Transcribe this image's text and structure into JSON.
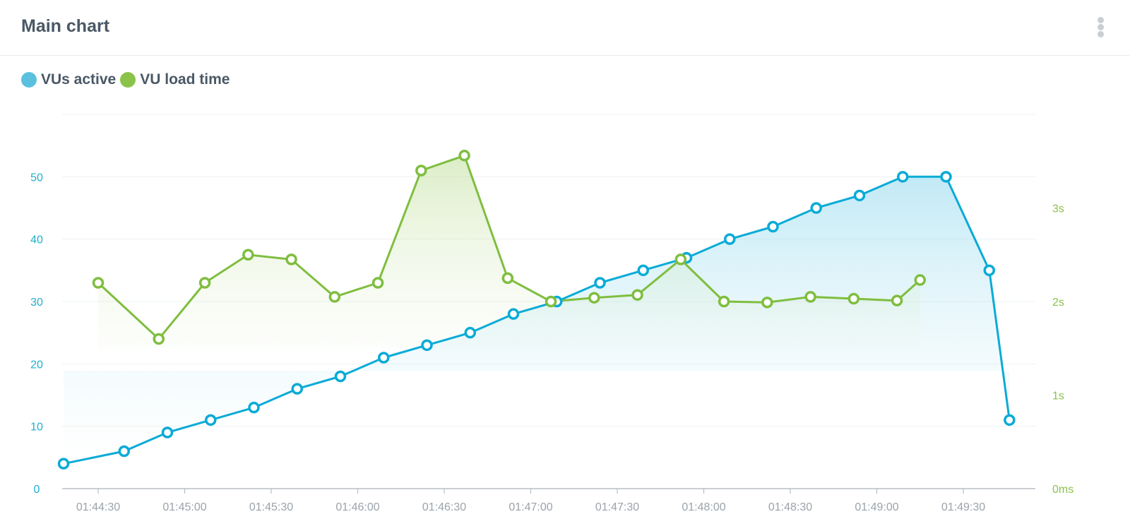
{
  "panel": {
    "title": "Main chart",
    "menu_icon": "more-vertical-icon"
  },
  "legend": [
    {
      "label": "VUs active",
      "color": "#5bc0de"
    },
    {
      "label": "VU load time",
      "color": "#8bc34a"
    }
  ],
  "colors": {
    "vus": "#0aabd6",
    "load": "#7fbe3f",
    "left_axis": "#1fb0cc",
    "right_axis": "#8bc34a",
    "x_axis": "#9aa3ab"
  },
  "chart_data": {
    "type": "line",
    "x": [
      "01:44:18",
      "01:44:39",
      "01:44:54",
      "01:45:09",
      "01:45:24",
      "01:45:39",
      "01:45:54",
      "01:46:09",
      "01:46:24",
      "01:46:39",
      "01:46:54",
      "01:47:09",
      "01:47:24",
      "01:47:39",
      "01:47:54",
      "01:48:09",
      "01:48:24",
      "01:48:39",
      "01:48:54",
      "01:49:09",
      "01:49:24",
      "01:49:39",
      "01:49:46"
    ],
    "x_ticks": [
      "01:44:30",
      "01:45:00",
      "01:45:30",
      "01:46:00",
      "01:46:30",
      "01:47:00",
      "01:47:30",
      "01:48:00",
      "01:48:30",
      "01:49:00",
      "01:49:30"
    ],
    "series": [
      {
        "name": "VUs active",
        "axis": "left",
        "x": [
          "01:44:18",
          "01:44:39",
          "01:44:54",
          "01:45:09",
          "01:45:24",
          "01:45:39",
          "01:45:54",
          "01:46:09",
          "01:46:24",
          "01:46:39",
          "01:46:54",
          "01:47:09",
          "01:47:24",
          "01:47:39",
          "01:47:54",
          "01:48:09",
          "01:48:24",
          "01:48:39",
          "01:48:54",
          "01:49:09",
          "01:49:24",
          "01:49:39",
          "01:49:46"
        ],
        "values": [
          4,
          6,
          9,
          11,
          13,
          16,
          18,
          21,
          23,
          25,
          28,
          30,
          33,
          35,
          37,
          40,
          42,
          45,
          47,
          50,
          50,
          35,
          11
        ]
      },
      {
        "name": "VU load time",
        "axis": "right",
        "unit": "s",
        "x": [
          "01:44:30",
          "01:44:51",
          "01:45:07",
          "01:45:22",
          "01:45:37",
          "01:45:52",
          "01:46:07",
          "01:46:22",
          "01:46:37",
          "01:46:52",
          "01:47:07",
          "01:47:22",
          "01:47:37",
          "01:47:52",
          "01:48:07",
          "01:48:22",
          "01:48:37",
          "01:48:52",
          "01:49:07",
          "01:49:15"
        ],
        "values": [
          2.2,
          1.6,
          2.2,
          2.5,
          2.45,
          2.05,
          2.2,
          3.4,
          3.56,
          2.25,
          2.0,
          2.04,
          2.07,
          2.45,
          2.0,
          1.99,
          2.05,
          2.03,
          2.01,
          2.23
        ]
      }
    ],
    "y_left": {
      "ticks": [
        "0",
        "10",
        "20",
        "30",
        "40",
        "50"
      ],
      "range": [
        0,
        60
      ]
    },
    "y_right": {
      "ticks": [
        "0ms",
        "1s",
        "2s",
        "3s"
      ],
      "range": [
        0,
        4
      ]
    },
    "grid": true,
    "legend_position": "top-left"
  }
}
